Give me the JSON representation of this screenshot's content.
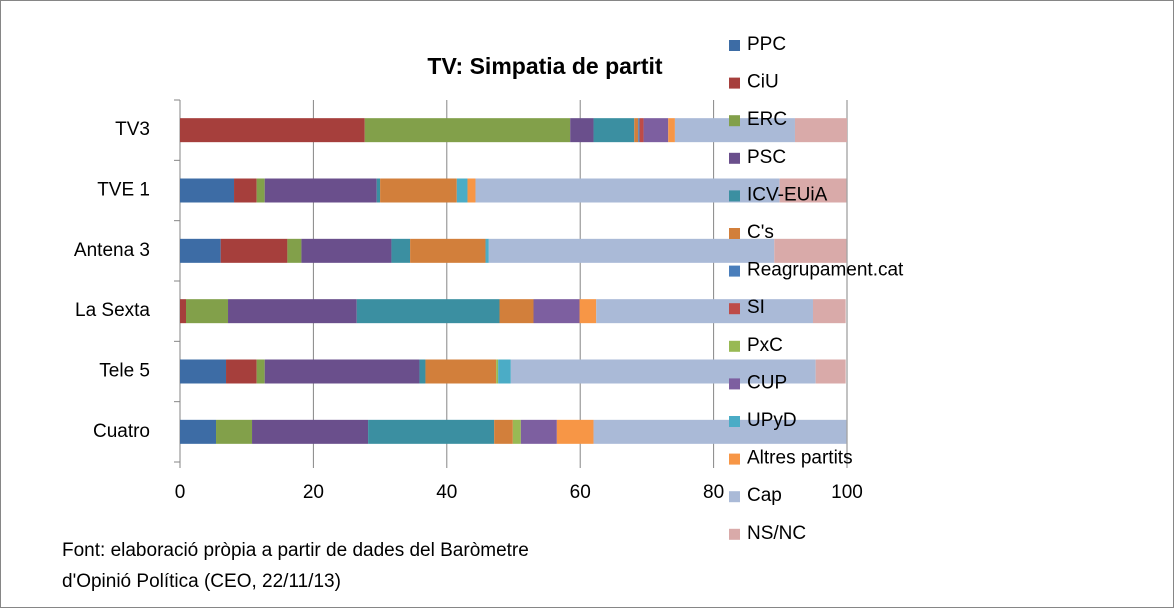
{
  "chart_data": {
    "type": "stacked_barh",
    "title": "TV: Simpatia de partit",
    "categories": [
      "TV3",
      "TVE 1",
      "Antena 3",
      "La Sexta",
      "Tele 5",
      "Cuatro"
    ],
    "series": [
      {
        "name": "PPC",
        "color": "#3d6ca5",
        "values": [
          0,
          8.1,
          6.1,
          0,
          6.9,
          5.4
        ]
      },
      {
        "name": "CiU",
        "color": "#a63f3c",
        "values": [
          27.7,
          3.4,
          10,
          0.9,
          4.6,
          0
        ]
      },
      {
        "name": "ERC",
        "color": "#82a04a",
        "values": [
          30.8,
          1.2,
          2.1,
          6.3,
          1.2,
          5.4
        ]
      },
      {
        "name": "PSC",
        "color": "#6a4f8c",
        "values": [
          3.5,
          16.8,
          13.5,
          19.3,
          23.2,
          17.4
        ]
      },
      {
        "name": "ICV-EUiA",
        "color": "#3b8fa1",
        "values": [
          6.1,
          0.5,
          2.8,
          21.4,
          0.9,
          18.9
        ]
      },
      {
        "name": "C's",
        "color": "#d27f3b",
        "values": [
          0.6,
          11.5,
          11.3,
          5.1,
          10.6,
          2.8
        ]
      },
      {
        "name": "Reagrupament.cat",
        "color": "#4a7ebb",
        "values": [
          0.2,
          0,
          0,
          0,
          0,
          0
        ]
      },
      {
        "name": "SI",
        "color": "#be4b48",
        "values": [
          0.6,
          0,
          0,
          0,
          0,
          0
        ]
      },
      {
        "name": "PxC",
        "color": "#98b954",
        "values": [
          0,
          0,
          0,
          0,
          0.3,
          1.2
        ]
      },
      {
        "name": "CUP",
        "color": "#7d5fa0",
        "values": [
          3.7,
          0,
          0,
          6.9,
          0,
          5.4
        ]
      },
      {
        "name": "UPyD",
        "color": "#4bacc6",
        "values": [
          0,
          1.6,
          0.5,
          0,
          1.9,
          0
        ]
      },
      {
        "name": "Altres partits",
        "color": "#f79646",
        "values": [
          1,
          1.2,
          0,
          2.5,
          0,
          5.5
        ]
      },
      {
        "name": "Cap",
        "color": "#aabad7",
        "values": [
          18,
          45.6,
          42.8,
          32.5,
          45.7,
          37.9
        ]
      },
      {
        "name": "NS/NC",
        "color": "#d9aaa9",
        "values": [
          7.8,
          10,
          10.8,
          4.9,
          4.5,
          0
        ]
      }
    ],
    "xlim": [
      0,
      100
    ],
    "xticks": [
      0,
      20,
      40,
      60,
      80,
      100
    ],
    "grid": true,
    "legend": "right",
    "note": [
      "Font: elaboració pròpia a partir de dades del Baròmetre",
      "d'Opinió Política (CEO,  22/11/13)"
    ]
  }
}
